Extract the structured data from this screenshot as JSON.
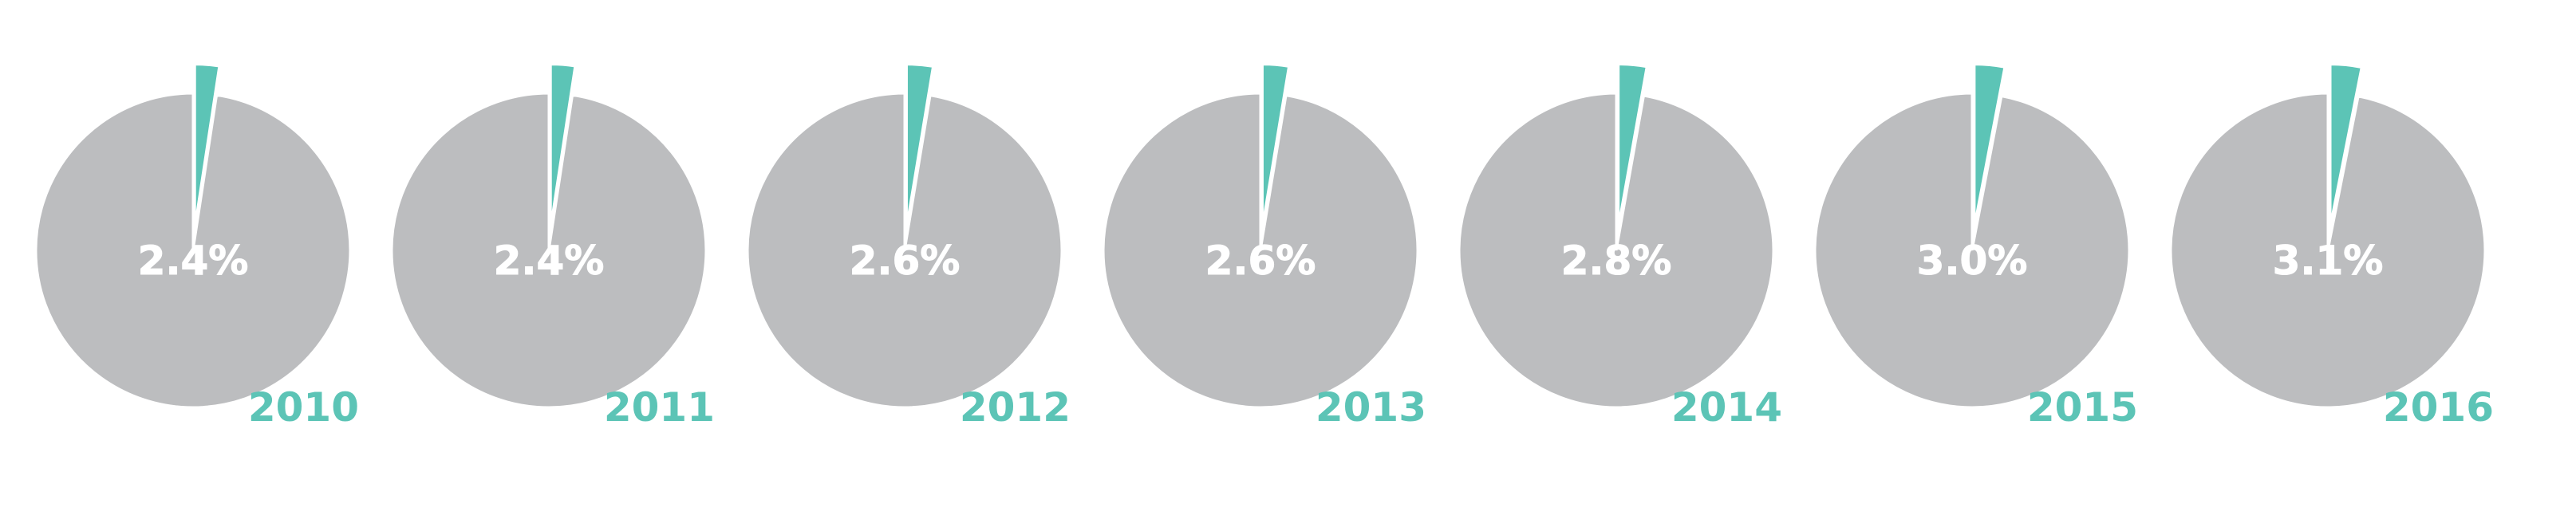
{
  "colors": {
    "pie_rest": "#bcbdbf",
    "pie_slice": "#5cc4b6",
    "percent_text": "#ffffff",
    "year_text": "#5cc4b6",
    "background": "#ffffff"
  },
  "chart_data": [
    {
      "type": "pie",
      "year": "2010",
      "value": 2.4,
      "label": "2.4%"
    },
    {
      "type": "pie",
      "year": "2011",
      "value": 2.4,
      "label": "2.4%"
    },
    {
      "type": "pie",
      "year": "2012",
      "value": 2.6,
      "label": "2.6%"
    },
    {
      "type": "pie",
      "year": "2013",
      "value": 2.6,
      "label": "2.6%"
    },
    {
      "type": "pie",
      "year": "2014",
      "value": 2.8,
      "label": "2.8%"
    },
    {
      "type": "pie",
      "year": "2015",
      "value": 3.0,
      "label": "3.0%"
    },
    {
      "type": "pie",
      "year": "2016",
      "value": 3.1,
      "label": "3.1%"
    }
  ]
}
